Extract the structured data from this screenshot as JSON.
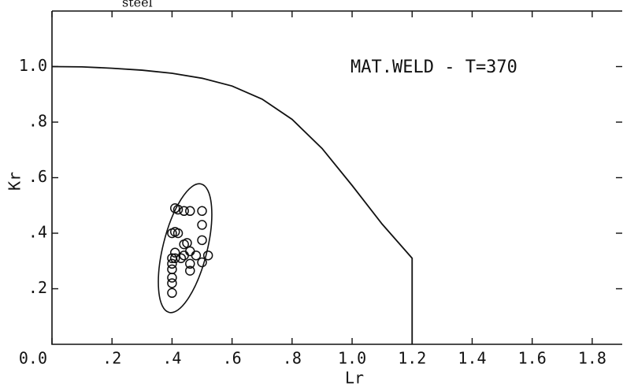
{
  "chart_data": {
    "type": "scatter",
    "annotations": [
      "steel",
      "MAT.WELD - T=370"
    ],
    "x_label": "Lr",
    "y_label": "Kr",
    "xlim": [
      0,
      1.9
    ],
    "ylim": [
      0,
      1.2
    ],
    "xticks": [
      {
        "value": 0,
        "label": "0.0"
      },
      {
        "value": 0.2,
        "label": ".2"
      },
      {
        "value": 0.4,
        "label": ".4"
      },
      {
        "value": 0.6,
        "label": ".6"
      },
      {
        "value": 0.8,
        "label": ".8"
      },
      {
        "value": 1,
        "label": "1.0"
      },
      {
        "value": 1.2,
        "label": "1.2"
      },
      {
        "value": 1.4,
        "label": "1.4"
      },
      {
        "value": 1.6,
        "label": "1.6"
      },
      {
        "value": 1.8,
        "label": "1.8"
      }
    ],
    "yticks": [
      {
        "value": 0.2,
        "label": ".2"
      },
      {
        "value": 0.4,
        "label": ".4"
      },
      {
        "value": 0.6,
        "label": ".6"
      },
      {
        "value": 0.8,
        "label": ".8"
      },
      {
        "value": 1,
        "label": "1.0"
      }
    ],
    "curve": {
      "x": [
        0,
        0.1,
        0.2,
        0.3,
        0.4,
        0.5,
        0.6,
        0.7,
        0.8,
        0.9,
        1.0,
        1.1,
        1.2,
        1.2
      ],
      "values": [
        1.0,
        0.999,
        0.994,
        0.987,
        0.976,
        0.958,
        0.93,
        0.883,
        0.81,
        0.705,
        0.572,
        0.433,
        0.31,
        0
      ],
      "color": "#111"
    },
    "points": {
      "x": [
        0.41,
        0.42,
        0.44,
        0.46,
        0.5,
        0.4,
        0.41,
        0.42,
        0.5,
        0.5,
        0.44,
        0.46,
        0.44,
        0.4,
        0.41,
        0.43,
        0.48,
        0.52,
        0.46,
        0.5,
        0.46,
        0.4,
        0.4,
        0.4,
        0.4,
        0.4,
        0.45,
        0.41
      ],
      "values": [
        0.49,
        0.485,
        0.48,
        0.48,
        0.48,
        0.4,
        0.405,
        0.4,
        0.43,
        0.375,
        0.36,
        0.335,
        0.32,
        0.31,
        0.31,
        0.31,
        0.32,
        0.32,
        0.29,
        0.295,
        0.265,
        0.29,
        0.27,
        0.24,
        0.22,
        0.185,
        0.365,
        0.33
      ],
      "color": "#111"
    }
  }
}
